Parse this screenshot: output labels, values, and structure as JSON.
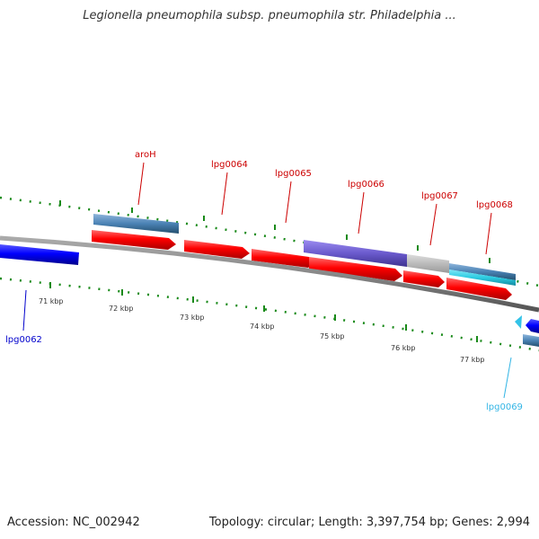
{
  "title": "Legionella pneumophila subsp. pneumophila str. Philadelphia ...",
  "footer": {
    "accession": "Accession: NC_002942",
    "summary": "Topology: circular; Length: 3,397,754 bp; Genes: 2,994"
  },
  "colors": {
    "forward_gene": "#ff0000",
    "reverse_gene": "#0000ff",
    "cyan_gene": "#33c3e8",
    "steel_gene": "#4a82b4",
    "purple_gene": "#6a5acd",
    "grey_gene": "#bbbbbb",
    "backbone": "#888888",
    "tick": "#1a8a1a"
  },
  "scale": {
    "labels": [
      "71 kbp",
      "72 kbp",
      "73 kbp",
      "74 kbp",
      "75 kbp",
      "76 kbp",
      "77 kbp"
    ]
  },
  "gene_labels": [
    {
      "text": "aroH",
      "color": "#cc0000"
    },
    {
      "text": "lpg0064",
      "color": "#cc0000"
    },
    {
      "text": "lpg0065",
      "color": "#cc0000"
    },
    {
      "text": "lpg0066",
      "color": "#cc0000"
    },
    {
      "text": "lpg0067",
      "color": "#cc0000"
    },
    {
      "text": "lpg0068",
      "color": "#cc0000"
    },
    {
      "text": "lpg0062",
      "color": "#0000cc"
    },
    {
      "text": "lpg0069",
      "color": "#33b5e5"
    }
  ]
}
